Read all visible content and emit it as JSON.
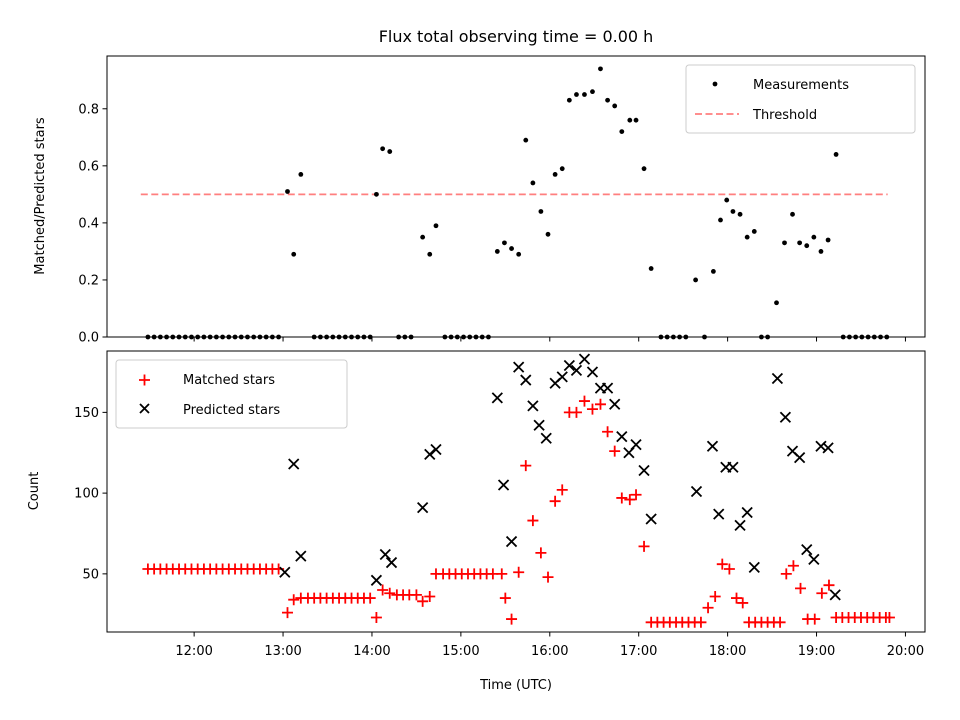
{
  "figure": {
    "title": "Flux total observing time = 0.00 h"
  },
  "colors": {
    "measurement": "#000000",
    "threshold": "#ff7f7f",
    "matched": "#ff0000",
    "predicted": "#000000",
    "axes": "#000000",
    "background": "#ffffff"
  },
  "chart_data": [
    {
      "type": "scatter",
      "xlabel": "",
      "ylabel": "Matched/Predicted stars",
      "xlim": [
        11.02,
        20.22
      ],
      "ylim": [
        0,
        0.985
      ],
      "x_ticks": [
        "12:00",
        "13:00",
        "14:00",
        "15:00",
        "16:00",
        "17:00",
        "18:00",
        "19:00",
        "20:00"
      ],
      "y_ticks": [
        "0.0",
        "0.2",
        "0.4",
        "0.6",
        "0.8"
      ],
      "grid": false,
      "legend_position": "top-right",
      "legend": [
        "Measurements",
        "Threshold"
      ],
      "threshold": {
        "name": "Threshold",
        "y": 0.5,
        "x": [
          11.4,
          19.8
        ]
      },
      "series": [
        {
          "name": "Measurements",
          "points": [
            [
              11.48,
              0
            ],
            [
              11.55,
              0
            ],
            [
              11.62,
              0
            ],
            [
              11.69,
              0
            ],
            [
              11.76,
              0
            ],
            [
              11.83,
              0
            ],
            [
              11.9,
              0
            ],
            [
              11.97,
              0
            ],
            [
              12.04,
              0
            ],
            [
              12.11,
              0
            ],
            [
              12.18,
              0
            ],
            [
              12.25,
              0
            ],
            [
              12.32,
              0
            ],
            [
              12.39,
              0
            ],
            [
              12.46,
              0
            ],
            [
              12.53,
              0
            ],
            [
              12.6,
              0
            ],
            [
              12.67,
              0
            ],
            [
              12.74,
              0
            ],
            [
              12.81,
              0
            ],
            [
              12.88,
              0
            ],
            [
              12.95,
              0
            ],
            [
              13.05,
              0.51
            ],
            [
              13.12,
              0.29
            ],
            [
              13.2,
              0.57
            ],
            [
              13.35,
              0
            ],
            [
              13.42,
              0
            ],
            [
              13.49,
              0
            ],
            [
              13.56,
              0
            ],
            [
              13.63,
              0
            ],
            [
              13.7,
              0
            ],
            [
              13.77,
              0
            ],
            [
              13.84,
              0
            ],
            [
              13.91,
              0
            ],
            [
              13.98,
              0
            ],
            [
              14.05,
              0.5
            ],
            [
              14.12,
              0.66
            ],
            [
              14.2,
              0.65
            ],
            [
              14.3,
              0
            ],
            [
              14.37,
              0
            ],
            [
              14.44,
              0
            ],
            [
              14.57,
              0.35
            ],
            [
              14.65,
              0.29
            ],
            [
              14.72,
              0.39
            ],
            [
              14.82,
              0
            ],
            [
              14.89,
              0
            ],
            [
              14.96,
              0
            ],
            [
              15.03,
              0
            ],
            [
              15.1,
              0
            ],
            [
              15.17,
              0
            ],
            [
              15.24,
              0
            ],
            [
              15.31,
              0
            ],
            [
              15.41,
              0.3
            ],
            [
              15.49,
              0.33
            ],
            [
              15.57,
              0.31
            ],
            [
              15.65,
              0.29
            ],
            [
              15.73,
              0.69
            ],
            [
              15.81,
              0.54
            ],
            [
              15.9,
              0.44
            ],
            [
              15.98,
              0.36
            ],
            [
              16.06,
              0.57
            ],
            [
              16.14,
              0.59
            ],
            [
              16.22,
              0.83
            ],
            [
              16.3,
              0.85
            ],
            [
              16.39,
              0.85
            ],
            [
              16.48,
              0.86
            ],
            [
              16.57,
              0.94
            ],
            [
              16.65,
              0.83
            ],
            [
              16.73,
              0.81
            ],
            [
              16.81,
              0.72
            ],
            [
              16.9,
              0.76
            ],
            [
              16.97,
              0.76
            ],
            [
              17.06,
              0.59
            ],
            [
              17.14,
              0.24
            ],
            [
              17.25,
              0
            ],
            [
              17.32,
              0
            ],
            [
              17.39,
              0
            ],
            [
              17.46,
              0
            ],
            [
              17.53,
              0
            ],
            [
              17.64,
              0.2
            ],
            [
              17.74,
              0
            ],
            [
              17.84,
              0.23
            ],
            [
              17.92,
              0.41
            ],
            [
              17.99,
              0.48
            ],
            [
              18.06,
              0.44
            ],
            [
              18.14,
              0.43
            ],
            [
              18.22,
              0.35
            ],
            [
              18.3,
              0.37
            ],
            [
              18.38,
              0
            ],
            [
              18.45,
              0
            ],
            [
              18.55,
              0.12
            ],
            [
              18.64,
              0.33
            ],
            [
              18.73,
              0.43
            ],
            [
              18.81,
              0.33
            ],
            [
              18.89,
              0.32
            ],
            [
              18.97,
              0.35
            ],
            [
              19.05,
              0.3
            ],
            [
              19.13,
              0.34
            ],
            [
              19.22,
              0.64
            ],
            [
              19.3,
              0
            ],
            [
              19.37,
              0
            ],
            [
              19.44,
              0
            ],
            [
              19.51,
              0
            ],
            [
              19.58,
              0
            ],
            [
              19.65,
              0
            ],
            [
              19.72,
              0
            ],
            [
              19.79,
              0
            ]
          ]
        }
      ]
    },
    {
      "type": "scatter",
      "xlabel": "Time (UTC)",
      "ylabel": "Count",
      "xlim": [
        11.02,
        20.22
      ],
      "ylim": [
        14,
        188
      ],
      "x_ticks": [
        "12:00",
        "13:00",
        "14:00",
        "15:00",
        "16:00",
        "17:00",
        "18:00",
        "19:00",
        "20:00"
      ],
      "y_ticks": [
        "50",
        "100",
        "150"
      ],
      "grid": false,
      "legend_position": "top-left",
      "legend": [
        "Matched stars",
        "Predicted stars"
      ],
      "series": [
        {
          "name": "Matched stars",
          "points": [
            [
              11.48,
              53
            ],
            [
              11.55,
              53
            ],
            [
              11.62,
              53
            ],
            [
              11.69,
              53
            ],
            [
              11.76,
              53
            ],
            [
              11.83,
              53
            ],
            [
              11.9,
              53
            ],
            [
              11.97,
              53
            ],
            [
              12.04,
              53
            ],
            [
              12.11,
              53
            ],
            [
              12.18,
              53
            ],
            [
              12.25,
              53
            ],
            [
              12.32,
              53
            ],
            [
              12.39,
              53
            ],
            [
              12.46,
              53
            ],
            [
              12.53,
              53
            ],
            [
              12.6,
              53
            ],
            [
              12.67,
              53
            ],
            [
              12.74,
              53
            ],
            [
              12.81,
              53
            ],
            [
              12.88,
              53
            ],
            [
              12.95,
              53
            ],
            [
              13.05,
              26
            ],
            [
              13.12,
              34
            ],
            [
              13.2,
              35
            ],
            [
              13.28,
              35
            ],
            [
              13.35,
              35
            ],
            [
              13.42,
              35
            ],
            [
              13.49,
              35
            ],
            [
              13.56,
              35
            ],
            [
              13.63,
              35
            ],
            [
              13.7,
              35
            ],
            [
              13.77,
              35
            ],
            [
              13.84,
              35
            ],
            [
              13.91,
              35
            ],
            [
              13.98,
              35
            ],
            [
              14.05,
              23
            ],
            [
              14.12,
              40
            ],
            [
              14.2,
              38
            ],
            [
              14.28,
              37
            ],
            [
              14.35,
              37
            ],
            [
              14.42,
              37
            ],
            [
              14.5,
              37
            ],
            [
              14.57,
              33
            ],
            [
              14.65,
              36
            ],
            [
              14.72,
              50
            ],
            [
              14.8,
              50
            ],
            [
              14.87,
              50
            ],
            [
              14.94,
              50
            ],
            [
              15.01,
              50
            ],
            [
              15.08,
              50
            ],
            [
              15.15,
              50
            ],
            [
              15.22,
              50
            ],
            [
              15.29,
              50
            ],
            [
              15.36,
              50
            ],
            [
              15.46,
              50
            ],
            [
              15.5,
              35
            ],
            [
              15.57,
              22
            ],
            [
              15.65,
              51
            ],
            [
              15.73,
              117
            ],
            [
              15.81,
              83
            ],
            [
              15.9,
              63
            ],
            [
              15.98,
              48
            ],
            [
              16.06,
              95
            ],
            [
              16.14,
              102
            ],
            [
              16.22,
              150
            ],
            [
              16.3,
              150
            ],
            [
              16.39,
              157
            ],
            [
              16.48,
              152
            ],
            [
              16.57,
              155
            ],
            [
              16.65,
              138
            ],
            [
              16.73,
              126
            ],
            [
              16.81,
              97
            ],
            [
              16.9,
              96
            ],
            [
              16.97,
              99
            ],
            [
              17.06,
              67
            ],
            [
              17.14,
              20
            ],
            [
              17.21,
              20
            ],
            [
              17.28,
              20
            ],
            [
              17.35,
              20
            ],
            [
              17.42,
              20
            ],
            [
              17.49,
              20
            ],
            [
              17.56,
              20
            ],
            [
              17.63,
              20
            ],
            [
              17.7,
              20
            ],
            [
              17.78,
              29
            ],
            [
              17.86,
              36
            ],
            [
              17.94,
              56
            ],
            [
              18.02,
              53
            ],
            [
              18.1,
              35
            ],
            [
              18.17,
              32
            ],
            [
              18.24,
              20
            ],
            [
              18.31,
              20
            ],
            [
              18.38,
              20
            ],
            [
              18.45,
              20
            ],
            [
              18.52,
              20
            ],
            [
              18.59,
              20
            ],
            [
              18.66,
              50
            ],
            [
              18.74,
              55
            ],
            [
              18.82,
              41
            ],
            [
              18.9,
              22
            ],
            [
              18.98,
              22
            ],
            [
              19.06,
              38
            ],
            [
              19.14,
              43
            ],
            [
              19.22,
              23
            ],
            [
              19.29,
              23
            ],
            [
              19.36,
              23
            ],
            [
              19.43,
              23
            ],
            [
              19.5,
              23
            ],
            [
              19.57,
              23
            ],
            [
              19.64,
              23
            ],
            [
              19.71,
              23
            ],
            [
              19.78,
              23
            ],
            [
              19.82,
              23
            ]
          ]
        },
        {
          "name": "Predicted stars",
          "points": [
            [
              13.02,
              51
            ],
            [
              13.12,
              118
            ],
            [
              13.2,
              61
            ],
            [
              14.05,
              46
            ],
            [
              14.15,
              62
            ],
            [
              14.22,
              57
            ],
            [
              14.57,
              91
            ],
            [
              14.65,
              124
            ],
            [
              14.72,
              127
            ],
            [
              15.41,
              159
            ],
            [
              15.48,
              105
            ],
            [
              15.57,
              70
            ],
            [
              15.65,
              178
            ],
            [
              15.73,
              170
            ],
            [
              15.81,
              154
            ],
            [
              15.88,
              142
            ],
            [
              15.96,
              134
            ],
            [
              16.06,
              168
            ],
            [
              16.14,
              172
            ],
            [
              16.22,
              179
            ],
            [
              16.3,
              176
            ],
            [
              16.39,
              183
            ],
            [
              16.48,
              175
            ],
            [
              16.57,
              165
            ],
            [
              16.65,
              165
            ],
            [
              16.73,
              155
            ],
            [
              16.81,
              135
            ],
            [
              16.89,
              125
            ],
            [
              16.97,
              130
            ],
            [
              17.06,
              114
            ],
            [
              17.14,
              84
            ],
            [
              17.65,
              101
            ],
            [
              17.83,
              129
            ],
            [
              17.9,
              87
            ],
            [
              17.98,
              116
            ],
            [
              18.06,
              116
            ],
            [
              18.14,
              80
            ],
            [
              18.22,
              88
            ],
            [
              18.3,
              54
            ],
            [
              18.56,
              171
            ],
            [
              18.65,
              147
            ],
            [
              18.73,
              126
            ],
            [
              18.81,
              122
            ],
            [
              18.89,
              65
            ],
            [
              18.97,
              59
            ],
            [
              19.05,
              129
            ],
            [
              19.13,
              128
            ],
            [
              19.21,
              37
            ]
          ]
        }
      ]
    }
  ]
}
